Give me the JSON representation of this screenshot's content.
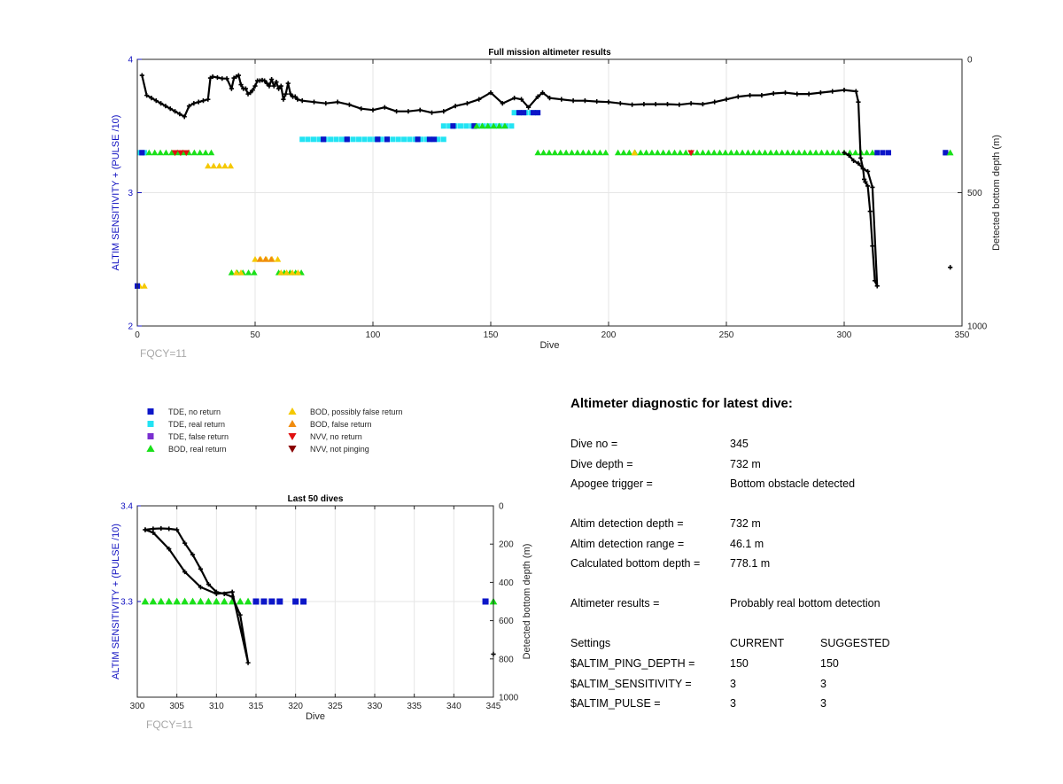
{
  "colors": {
    "tde_no_return": "#0c16c8",
    "tde_real_return": "#22e3f3",
    "tde_false_return": "#7a2fd0",
    "bod_real_return": "#19e019",
    "bod_possibly_false": "#f5c800",
    "bod_false_return": "#f08c10",
    "nvv_no_return": "#e01010",
    "nvv_not_pinging": "#8a0000",
    "left_axis": "#1010c0",
    "fqcy_text": "#a8a8a8",
    "depth_line": "#000000"
  },
  "legend": {
    "items": [
      {
        "key": "tde_no_return",
        "marker": "square",
        "label": "TDE, no return"
      },
      {
        "key": "tde_real_return",
        "marker": "square",
        "label": "TDE, real return"
      },
      {
        "key": "tde_false_return",
        "marker": "square",
        "label": "TDE, false return"
      },
      {
        "key": "bod_real_return",
        "marker": "triangle-up",
        "label": "BOD, real return"
      },
      {
        "key": "bod_possibly_false",
        "marker": "triangle-up",
        "label": "BOD, possibly false return"
      },
      {
        "key": "bod_false_return",
        "marker": "triangle-up",
        "label": "BOD, false return"
      },
      {
        "key": "nvv_no_return",
        "marker": "triangle-down",
        "label": "NVV, no return"
      },
      {
        "key": "nvv_not_pinging",
        "marker": "triangle-down",
        "label": "NVV, not pinging"
      }
    ]
  },
  "chart_data": [
    {
      "type": "scatter",
      "title": "Full mission altimeter results",
      "xlabel": "Dive",
      "ylabel": "ALTIM SENSITIVITY + (PULSE /10)",
      "y2label": "Detected bottom depth (m)",
      "xlim": [
        0,
        350
      ],
      "ylim": [
        2,
        4
      ],
      "y2lim": [
        0,
        1000
      ],
      "y2_reversed": true,
      "xticks": [
        0,
        50,
        100,
        150,
        200,
        250,
        300,
        350
      ],
      "yticks": [
        2,
        3,
        4
      ],
      "y2ticks": [
        0,
        500,
        1000
      ],
      "grid": true,
      "annotation": "FQCY=11",
      "segments": [
        {
          "key": "tde_real_return",
          "y": 3.3,
          "x": [
            1,
            3
          ]
        },
        {
          "key": "tde_no_return",
          "y": 3.3,
          "x": [
            2,
            2
          ]
        },
        {
          "key": "bod_real_return",
          "y": 3.3,
          "x": [
            5,
            32
          ]
        },
        {
          "key": "nvv_no_return",
          "y": 3.3,
          "x": [
            16,
            21
          ]
        },
        {
          "key": "bod_possibly_false",
          "y": 3.2,
          "x": [
            30,
            41
          ]
        },
        {
          "key": "bod_possibly_false",
          "y": 2.3,
          "x": [
            1,
            3
          ]
        },
        {
          "key": "tde_no_return",
          "y": 2.3,
          "x": [
            0,
            0
          ]
        },
        {
          "key": "bod_possibly_false",
          "y": 2.5,
          "x": [
            50,
            61
          ]
        },
        {
          "key": "bod_false_return",
          "y": 2.5,
          "x": [
            52,
            58
          ]
        },
        {
          "key": "bod_real_return",
          "y": 2.4,
          "x": [
            40,
            50
          ]
        },
        {
          "key": "bod_possibly_false",
          "y": 2.4,
          "x": [
            42,
            44
          ]
        },
        {
          "key": "bod_real_return",
          "y": 2.4,
          "x": [
            60,
            70
          ]
        },
        {
          "key": "bod_possibly_false",
          "y": 2.4,
          "x": [
            61,
            70
          ]
        },
        {
          "key": "tde_real_return",
          "y": 3.4,
          "x": [
            70,
            130
          ]
        },
        {
          "key": "tde_no_return",
          "y": 3.4,
          "x": [
            79,
            79
          ]
        },
        {
          "key": "tde_no_return",
          "y": 3.4,
          "x": [
            89,
            89
          ]
        },
        {
          "key": "tde_no_return",
          "y": 3.4,
          "x": [
            102,
            102
          ]
        },
        {
          "key": "tde_no_return",
          "y": 3.4,
          "x": [
            106,
            106
          ]
        },
        {
          "key": "tde_no_return",
          "y": 3.4,
          "x": [
            119,
            119
          ]
        },
        {
          "key": "tde_no_return",
          "y": 3.4,
          "x": [
            124,
            126
          ]
        },
        {
          "key": "tde_real_return",
          "y": 3.5,
          "x": [
            130,
            160
          ]
        },
        {
          "key": "tde_no_return",
          "y": 3.5,
          "x": [
            134,
            134
          ]
        },
        {
          "key": "tde_no_return",
          "y": 3.5,
          "x": [
            143,
            143
          ]
        },
        {
          "key": "bod_real_return",
          "y": 3.5,
          "x": [
            144,
            158
          ]
        },
        {
          "key": "tde_real_return",
          "y": 3.6,
          "x": [
            160,
            170
          ]
        },
        {
          "key": "tde_no_return",
          "y": 3.6,
          "x": [
            162,
            164
          ]
        },
        {
          "key": "tde_no_return",
          "y": 3.6,
          "x": [
            168,
            170
          ]
        },
        {
          "key": "bod_real_return",
          "y": 3.3,
          "x": [
            170,
            201
          ]
        },
        {
          "key": "bod_real_return",
          "y": 3.3,
          "x": [
            204,
            313
          ]
        },
        {
          "key": "bod_possibly_false",
          "y": 3.3,
          "x": [
            211,
            211
          ]
        },
        {
          "key": "nvv_no_return",
          "y": 3.3,
          "x": [
            235,
            235
          ]
        },
        {
          "key": "tde_no_return",
          "y": 3.3,
          "x": [
            314,
            321
          ]
        },
        {
          "key": "tde_no_return",
          "y": 3.3,
          "x": [
            343,
            343
          ]
        },
        {
          "key": "bod_real_return",
          "y": 3.3,
          "x": [
            345,
            345
          ]
        }
      ],
      "depth_series": {
        "x": [
          2,
          4,
          6,
          8,
          10,
          12,
          14,
          16,
          18,
          20,
          22,
          24,
          26,
          28,
          30,
          31,
          32,
          34,
          36,
          38,
          40,
          41,
          42,
          43,
          44,
          45,
          46,
          47,
          48,
          49,
          50,
          51,
          52,
          53,
          54,
          55,
          56,
          57,
          58,
          59,
          60,
          61,
          62,
          63,
          64,
          65,
          66,
          67,
          68,
          70,
          75,
          80,
          85,
          90,
          95,
          100,
          105,
          110,
          115,
          120,
          125,
          130,
          135,
          140,
          145,
          150,
          155,
          160,
          163,
          166,
          170,
          172,
          175,
          180,
          185,
          190,
          195,
          200,
          205,
          210,
          215,
          220,
          225,
          230,
          235,
          240,
          245,
          250,
          255,
          260,
          265,
          270,
          275,
          280,
          285,
          290,
          295,
          300,
          305,
          306,
          307,
          308,
          308.5,
          309,
          310,
          311,
          312,
          313,
          314,
          312,
          310,
          308,
          306,
          304,
          302,
          300,
          345
        ],
        "y": [
          60,
          135,
          145,
          155,
          165,
          175,
          185,
          195,
          205,
          215,
          175,
          165,
          160,
          155,
          150,
          70,
          65,
          68,
          72,
          72,
          110,
          70,
          65,
          60,
          95,
          110,
          110,
          130,
          125,
          115,
          100,
          80,
          80,
          78,
          80,
          90,
          100,
          75,
          100,
          85,
          110,
          100,
          150,
          130,
          90,
          130,
          140,
          140,
          150,
          155,
          160,
          165,
          160,
          170,
          185,
          190,
          180,
          195,
          195,
          190,
          200,
          195,
          175,
          165,
          150,
          125,
          165,
          145,
          150,
          180,
          140,
          125,
          145,
          150,
          155,
          155,
          158,
          160,
          165,
          170,
          168,
          168,
          168,
          170,
          165,
          168,
          160,
          150,
          140,
          135,
          135,
          128,
          125,
          130,
          130,
          125,
          120,
          115,
          120,
          160,
          370,
          410,
          450,
          460,
          475,
          570,
          700,
          830,
          850,
          480,
          420,
          410,
          390,
          380,
          360,
          350,
          780
        ]
      }
    },
    {
      "type": "scatter",
      "title": "Last 50 dives",
      "xlabel": "Dive",
      "ylabel": "ALTIM SENSITIVITY + (PULSE /10)",
      "y2label": "Detected bottom depth (m)",
      "xlim": [
        300,
        345
      ],
      "ylim": [
        3.2,
        3.4
      ],
      "y2lim": [
        0,
        1000
      ],
      "y2_reversed": true,
      "xticks": [
        300,
        305,
        310,
        315,
        320,
        325,
        330,
        335,
        340,
        345
      ],
      "yticks": [
        3.3,
        3.4
      ],
      "y2ticks": [
        0,
        200,
        400,
        600,
        800,
        1000
      ],
      "grid": true,
      "annotation": "FQCY=11",
      "points": [
        {
          "key": "bod_real_return",
          "y": 3.3,
          "x": [
            301,
            302,
            303,
            304,
            305,
            306,
            307,
            308,
            309,
            310,
            311,
            312,
            313,
            314
          ]
        },
        {
          "key": "tde_no_return",
          "y": 3.3,
          "x": [
            315,
            316,
            317,
            318,
            320,
            321,
            344
          ]
        },
        {
          "key": "bod_real_return",
          "y": 3.3,
          "x": [
            345
          ]
        }
      ],
      "depth_series": {
        "x": [
          301,
          302,
          303,
          304,
          305,
          306,
          307,
          308,
          309,
          310,
          311,
          312,
          313,
          314,
          312,
          310,
          308,
          306,
          304,
          302,
          301,
          345
        ],
        "y": [
          125,
          120,
          118,
          120,
          125,
          195,
          255,
          330,
          410,
          450,
          460,
          475,
          570,
          820,
          450,
          460,
          425,
          345,
          225,
          140,
          125,
          775
        ]
      }
    }
  ],
  "diagnostic": {
    "title": "Altimeter diagnostic for latest dive:",
    "rows": [
      {
        "label": "Dive no =",
        "value": "345"
      },
      {
        "label": "Dive depth =",
        "value": "732 m"
      },
      {
        "label": "Apogee trigger =",
        "value": "Bottom obstacle detected"
      },
      {
        "label": "Altim detection depth =",
        "value": "732 m"
      },
      {
        "label": "Altim detection range =",
        "value": "46.1 m"
      },
      {
        "label": "Calculated bottom depth =",
        "value": "778.1 m"
      },
      {
        "label": "Altimeter results =",
        "value": "Probably real bottom detection"
      }
    ],
    "settings_header": {
      "label": "Settings",
      "current": "CURRENT",
      "suggested": "SUGGESTED"
    },
    "settings": [
      {
        "label": "$ALTIM_PING_DEPTH =",
        "current": "150",
        "suggested": "150"
      },
      {
        "label": "$ALTIM_SENSITIVITY =",
        "current": "3",
        "suggested": "3"
      },
      {
        "label": "$ALTIM_PULSE =",
        "current": "3",
        "suggested": "3"
      }
    ]
  }
}
